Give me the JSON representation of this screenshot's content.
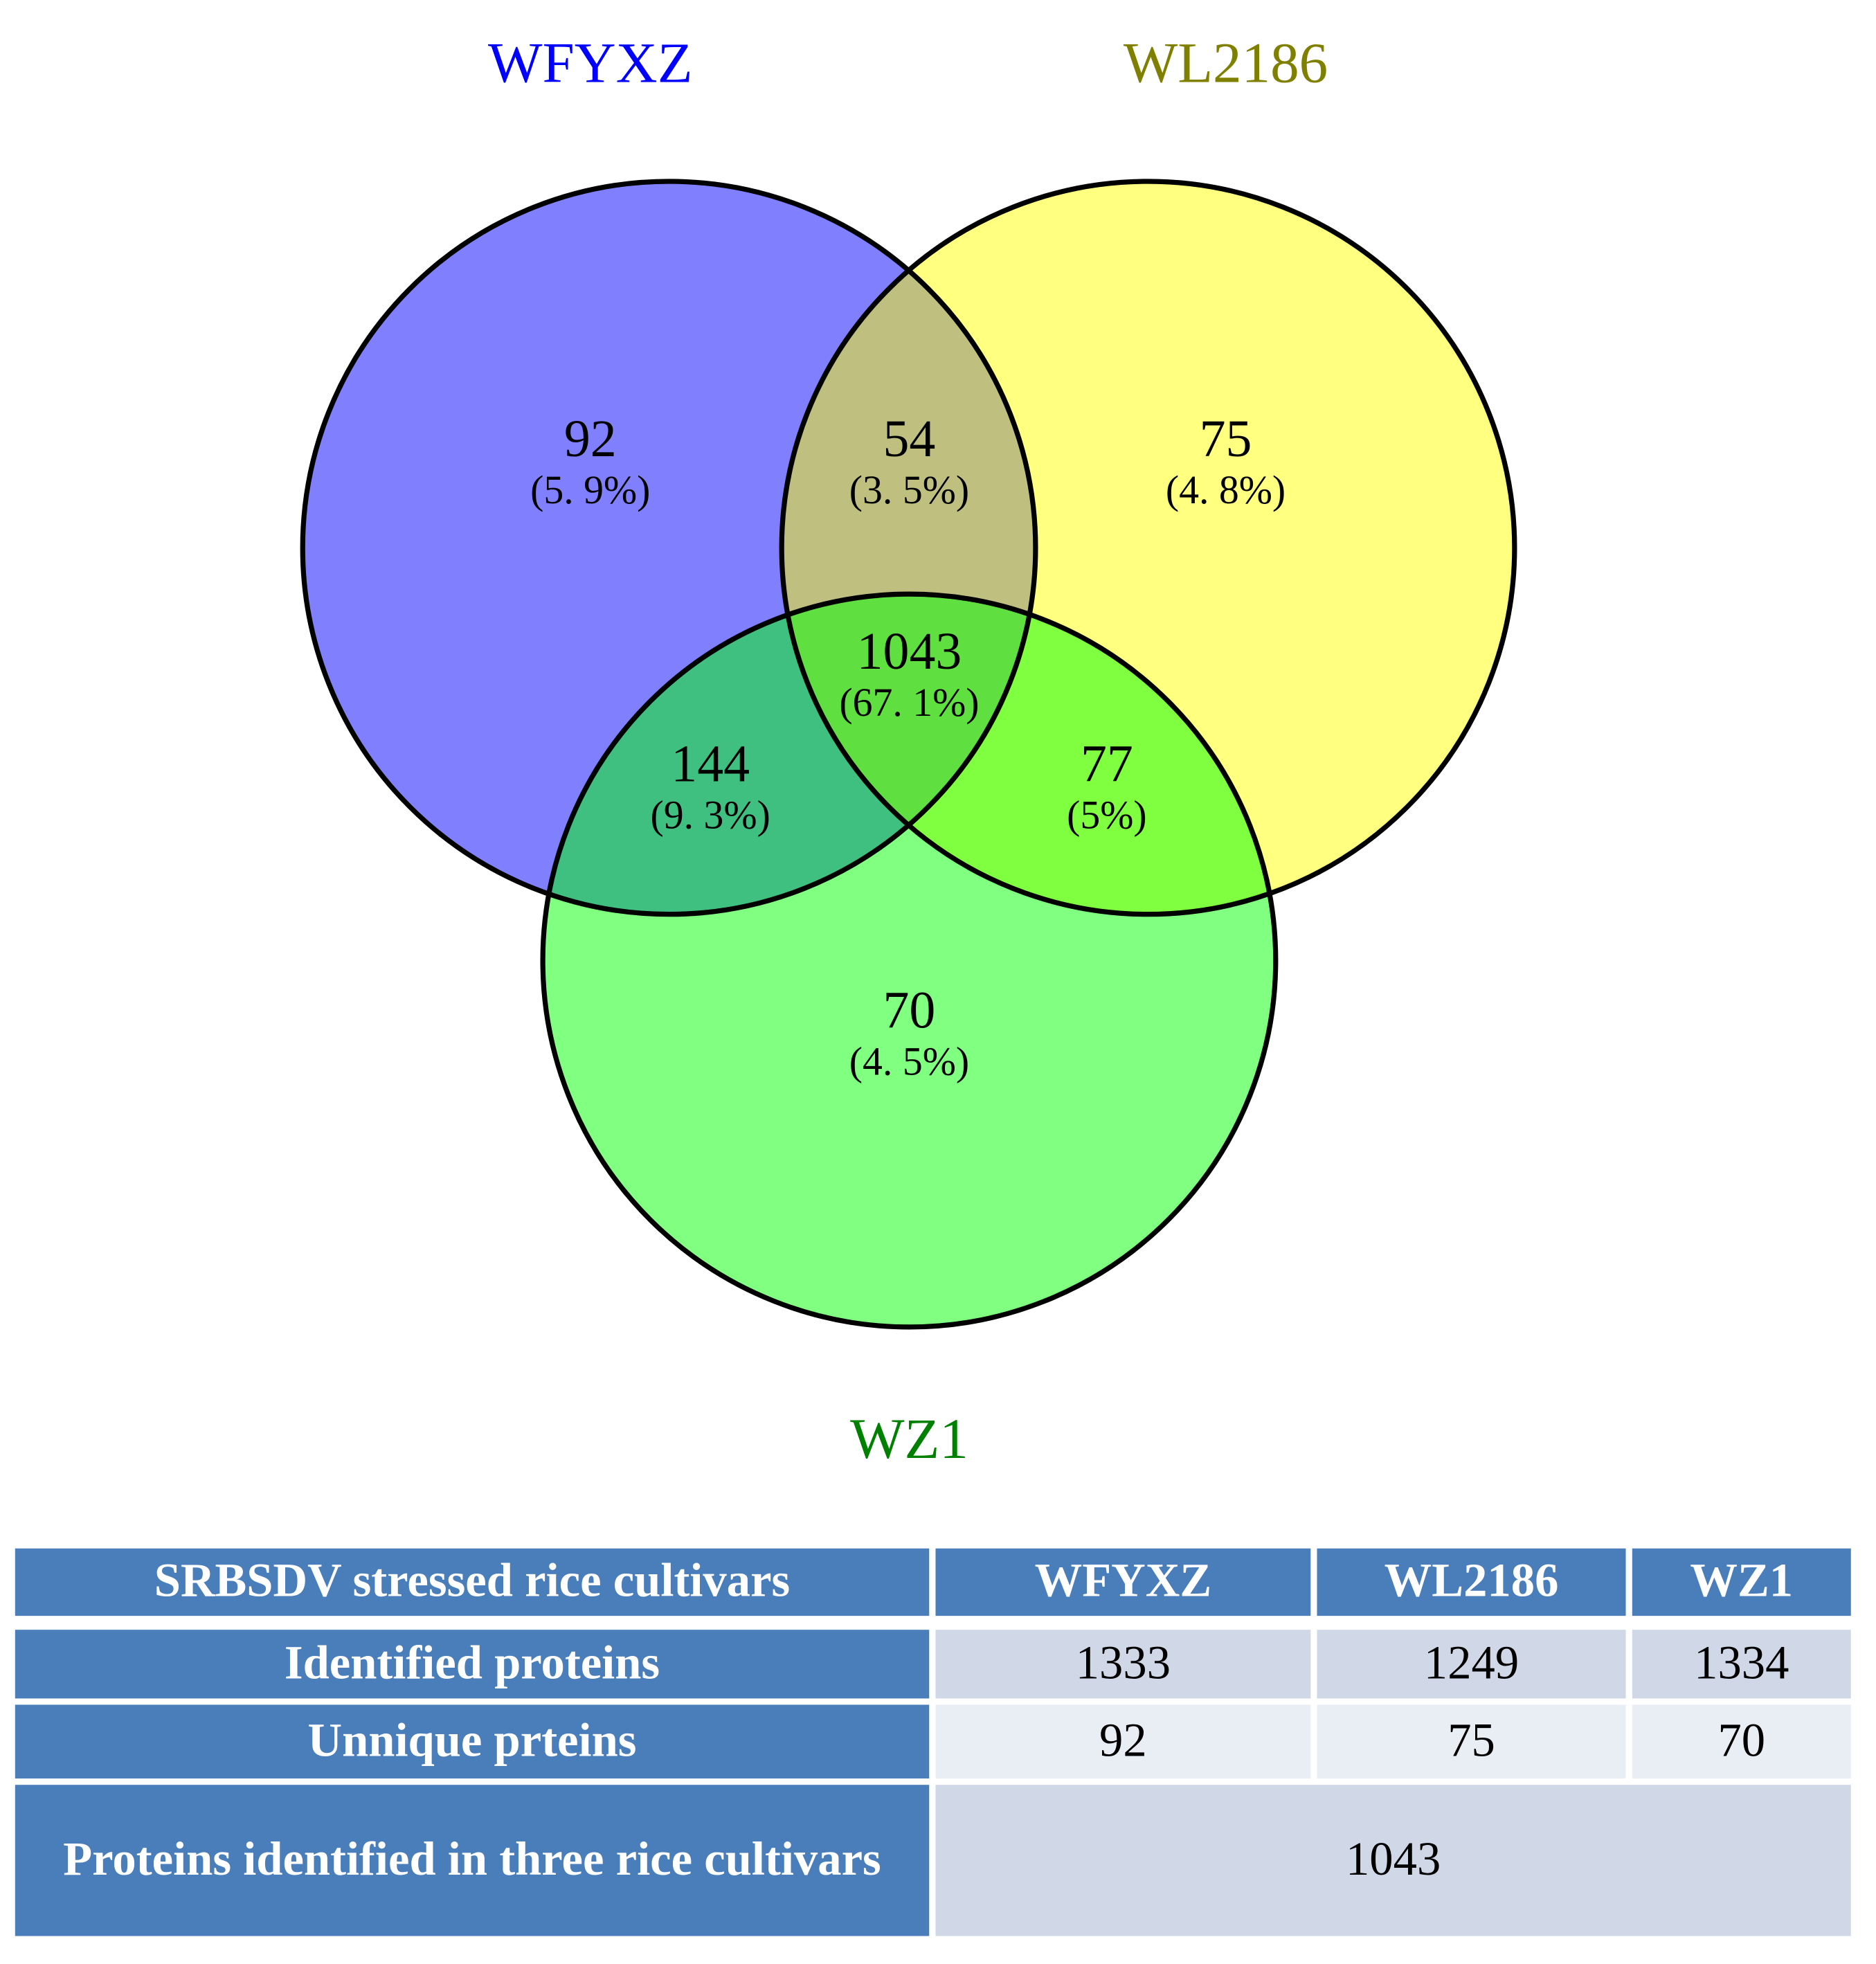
{
  "venn": {
    "sets": [
      {
        "label": "WFYXZ"
      },
      {
        "label": "WL2186"
      },
      {
        "label": "WZ1"
      }
    ],
    "regions": [
      {
        "count": 92,
        "percent": "(5. 9%)"
      },
      {
        "count": 54,
        "percent": "(3. 5%)"
      },
      {
        "count": 75,
        "percent": "(4. 8%)"
      },
      {
        "count": 1043,
        "percent": "(67. 1%)"
      },
      {
        "count": 144,
        "percent": "(9. 3%)"
      },
      {
        "count": 77,
        "percent": "(5%)"
      },
      {
        "count": 70,
        "percent": "(4. 5%)"
      }
    ]
  },
  "table": {
    "header": [
      "SRBSDV stressed rice cultivars",
      "WFYXZ",
      "WL2186",
      "WZ1"
    ],
    "rows": [
      [
        "Identified proteins",
        1333,
        1249,
        1334
      ],
      [
        "Unnique prteins",
        92,
        75,
        70
      ],
      [
        "Proteins identified in three rice cultivars",
        1043
      ]
    ]
  }
}
